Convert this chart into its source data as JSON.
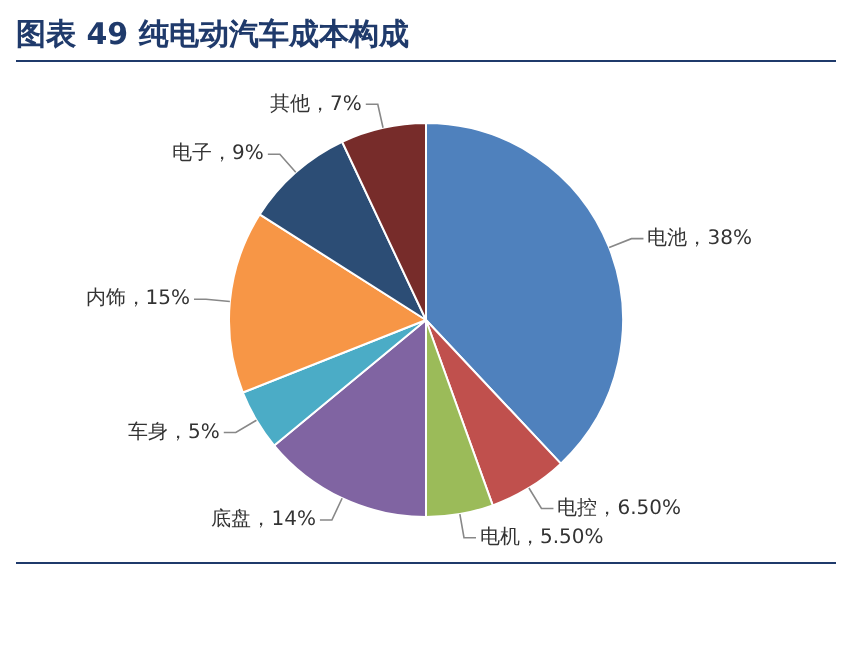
{
  "chart_data": {
    "type": "pie",
    "title": "图表 49 纯电动汽车成本构成",
    "categories": [
      "电池",
      "电控",
      "电机",
      "底盘",
      "车身",
      "内饰",
      "电子",
      "其他"
    ],
    "values": [
      38,
      6.5,
      5.5,
      14,
      5,
      15,
      9,
      7
    ],
    "value_labels": [
      "38%",
      "6.50%",
      "5.50%",
      "14%",
      "5%",
      "15%",
      "9%",
      "7%"
    ],
    "colors": [
      "#4f81bd",
      "#c0504d",
      "#9bbb59",
      "#8064a2",
      "#4bacc6",
      "#f79646",
      "#2c4d75",
      "#772c2a"
    ],
    "legend": false
  }
}
